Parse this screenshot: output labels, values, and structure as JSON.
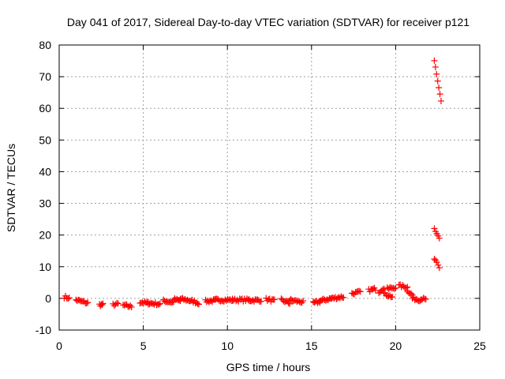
{
  "colors": {
    "series": "#ff0000",
    "grid": "#a0a0a0",
    "axis": "#000000",
    "background": "#ffffff"
  },
  "chart_data": {
    "type": "scatter",
    "title": "Day 041 of 2017, Sidereal Day-to-day VTEC variation (SDTVAR) for receiver p121",
    "xlabel": "GPS time / hours",
    "ylabel": "SDTVAR / TECUs",
    "xlim": [
      0,
      25
    ],
    "ylim": [
      -10,
      80
    ],
    "xticks": [
      0,
      5,
      10,
      15,
      20,
      25
    ],
    "yticks": [
      -10,
      0,
      10,
      20,
      30,
      40,
      50,
      60,
      70,
      80
    ],
    "grid": true,
    "marker": "plus",
    "segments": [
      {
        "x": [
          0.3,
          0.6
        ],
        "y": [
          0.5,
          0.0
        ]
      },
      {
        "x": [
          1.0,
          1.7
        ],
        "y": [
          -0.5,
          -1.5
        ]
      },
      {
        "x": [
          2.4,
          2.6
        ],
        "y": [
          -2.0,
          -2.0
        ]
      },
      {
        "x": [
          3.2,
          3.5
        ],
        "y": [
          -2.0,
          -1.8
        ]
      },
      {
        "x": [
          3.8,
          4.3
        ],
        "y": [
          -2.2,
          -2.6
        ]
      },
      {
        "x": [
          4.8,
          5.3
        ],
        "y": [
          -1.2,
          -1.5
        ]
      },
      {
        "x": [
          5.3,
          6.0
        ],
        "y": [
          -1.5,
          -1.8
        ]
      },
      {
        "x": [
          6.2,
          6.8
        ],
        "y": [
          -0.8,
          -1.2
        ]
      },
      {
        "x": [
          6.8,
          7.2
        ],
        "y": [
          -0.3,
          -0.8
        ]
      },
      {
        "x": [
          7.2,
          7.9
        ],
        "y": [
          -0.2,
          -0.8
        ]
      },
      {
        "x": [
          7.9,
          8.3
        ],
        "y": [
          -0.8,
          -1.5
        ]
      },
      {
        "x": [
          8.7,
          9.3
        ],
        "y": [
          -0.9,
          -0.7
        ]
      },
      {
        "x": [
          9.3,
          10.3
        ],
        "y": [
          -0.5,
          -0.5
        ]
      },
      {
        "x": [
          10.3,
          11.3
        ],
        "y": [
          -0.5,
          -0.5
        ]
      },
      {
        "x": [
          11.3,
          12.0
        ],
        "y": [
          -0.6,
          -0.6
        ]
      },
      {
        "x": [
          12.3,
          12.8
        ],
        "y": [
          -0.3,
          -0.8
        ]
      },
      {
        "x": [
          13.2,
          13.7
        ],
        "y": [
          -0.5,
          -1.5
        ]
      },
      {
        "x": [
          13.7,
          14.5
        ],
        "y": [
          -0.5,
          -1.2
        ]
      },
      {
        "x": [
          15.1,
          15.5
        ],
        "y": [
          -1.5,
          -1.0
        ]
      },
      {
        "x": [
          15.5,
          16.2
        ],
        "y": [
          -0.8,
          0.0
        ]
      },
      {
        "x": [
          16.2,
          16.9
        ],
        "y": [
          0.0,
          0.5
        ]
      },
      {
        "x": [
          17.4,
          17.9
        ],
        "y": [
          1.5,
          2.0
        ]
      },
      {
        "x": [
          18.4,
          18.8
        ],
        "y": [
          2.5,
          3.0
        ]
      },
      {
        "x": [
          19.0,
          19.3
        ],
        "y": [
          2.0,
          3.5
        ]
      },
      {
        "x": [
          19.3,
          19.8
        ],
        "y": [
          1.5,
          0.5
        ]
      },
      {
        "x": [
          19.5,
          20.0
        ],
        "y": [
          3.0,
          3.5
        ]
      },
      {
        "x": [
          20.2,
          20.7
        ],
        "y": [
          4.0,
          3.5
        ]
      },
      {
        "x": [
          20.7,
          21.0
        ],
        "y": [
          2.5,
          1.0
        ]
      },
      {
        "x": [
          21.0,
          21.5
        ],
        "y": [
          0.0,
          -0.5
        ]
      },
      {
        "x": [
          21.5,
          21.8
        ],
        "y": [
          0.0,
          -0.5
        ]
      },
      {
        "x": [
          22.3,
          22.6
        ],
        "y": [
          12.5,
          9.5
        ]
      },
      {
        "x": [
          22.3,
          22.6
        ],
        "y": [
          22.0,
          19.0
        ]
      },
      {
        "x": [
          22.3,
          22.7
        ],
        "y": [
          75.0,
          62.0
        ]
      }
    ]
  }
}
